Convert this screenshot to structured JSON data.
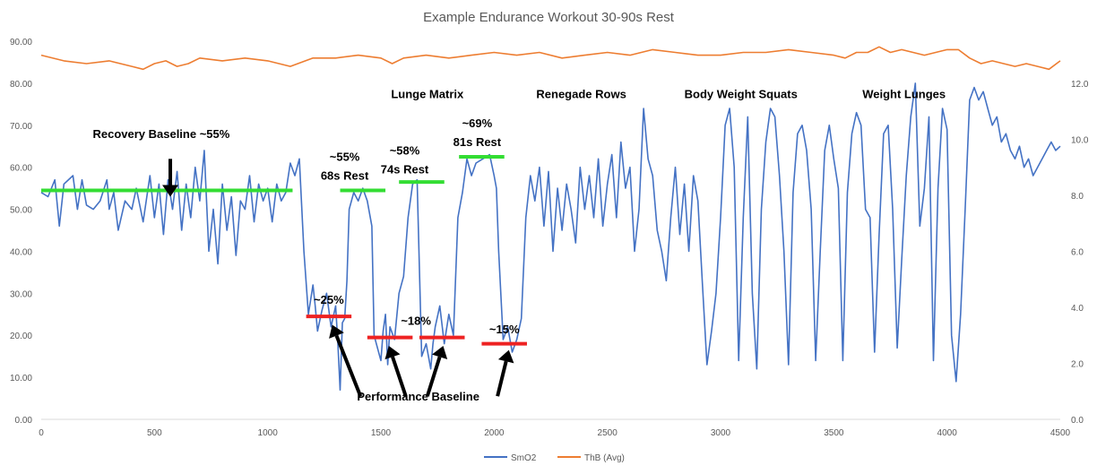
{
  "chart_data": {
    "type": "line",
    "title": "Example Endurance Workout 30-90s Rest",
    "xlabel": "",
    "ylabel": "",
    "x_ticks": [
      "0",
      "500",
      "1000",
      "1500",
      "2000",
      "2500",
      "3000",
      "3500",
      "4000",
      "4500"
    ],
    "y_left_ticks": [
      "0.00",
      "10.00",
      "20.00",
      "30.00",
      "40.00",
      "50.00",
      "60.00",
      "70.00",
      "80.00",
      "90.00"
    ],
    "y_right_ticks": [
      "0.0",
      "2.0",
      "4.0",
      "6.0",
      "8.0",
      "10.0",
      "12.0"
    ],
    "xlim": [
      0,
      4500
    ],
    "ylim_left": [
      0,
      90
    ],
    "ylim_right": [
      0,
      13.5
    ],
    "grid": false,
    "legend_position": "bottom",
    "series": [
      {
        "name": "SmO2",
        "axis": "left",
        "color": "#4472C4",
        "x": [
          0,
          30,
          60,
          80,
          100,
          140,
          160,
          180,
          200,
          230,
          260,
          290,
          300,
          320,
          340,
          370,
          400,
          420,
          450,
          480,
          500,
          520,
          540,
          560,
          580,
          600,
          620,
          640,
          660,
          680,
          700,
          720,
          740,
          760,
          780,
          800,
          820,
          840,
          860,
          880,
          900,
          920,
          940,
          960,
          980,
          1000,
          1020,
          1040,
          1060,
          1080,
          1100,
          1120,
          1140,
          1160,
          1180,
          1200,
          1210,
          1220,
          1240,
          1260,
          1280,
          1300,
          1310,
          1320,
          1330,
          1340,
          1350,
          1360,
          1380,
          1400,
          1420,
          1440,
          1460,
          1470,
          1480,
          1500,
          1510,
          1520,
          1530,
          1540,
          1560,
          1580,
          1600,
          1620,
          1640,
          1660,
          1680,
          1700,
          1720,
          1730,
          1740,
          1760,
          1780,
          1800,
          1820,
          1840,
          1860,
          1880,
          1900,
          1920,
          1950,
          1980,
          2000,
          2010,
          2020,
          2040,
          2060,
          2080,
          2100,
          2120,
          2140,
          2160,
          2180,
          2200,
          2220,
          2240,
          2260,
          2280,
          2300,
          2320,
          2340,
          2360,
          2380,
          2400,
          2420,
          2440,
          2460,
          2480,
          2500,
          2520,
          2540,
          2560,
          2580,
          2600,
          2620,
          2640,
          2660,
          2680,
          2700,
          2720,
          2740,
          2760,
          2780,
          2800,
          2820,
          2840,
          2860,
          2880,
          2900,
          2920,
          2940,
          2960,
          2980,
          3000,
          3020,
          3040,
          3060,
          3080,
          3100,
          3120,
          3140,
          3160,
          3180,
          3200,
          3220,
          3240,
          3260,
          3280,
          3300,
          3320,
          3340,
          3360,
          3380,
          3400,
          3420,
          3440,
          3460,
          3480,
          3500,
          3520,
          3540,
          3560,
          3580,
          3600,
          3620,
          3640,
          3660,
          3680,
          3700,
          3720,
          3740,
          3760,
          3780,
          3800,
          3820,
          3840,
          3860,
          3880,
          3900,
          3920,
          3940,
          3960,
          3980,
          4000,
          4020,
          4040,
          4060,
          4080,
          4100,
          4120,
          4140,
          4160,
          4180,
          4200,
          4220,
          4240,
          4260,
          4280,
          4300,
          4320,
          4340,
          4360,
          4380,
          4400,
          4420,
          4440,
          4460,
          4480,
          4500
        ],
        "values": [
          54,
          53,
          57,
          46,
          56,
          58,
          50,
          57,
          51,
          50,
          52,
          57,
          50,
          54,
          45,
          52,
          50,
          55,
          47,
          58,
          48,
          56,
          44,
          57,
          50,
          59,
          45,
          56,
          48,
          60,
          52,
          64,
          40,
          50,
          37,
          56,
          45,
          53,
          39,
          52,
          50,
          58,
          47,
          56,
          52,
          55,
          47,
          56,
          52,
          54,
          61,
          58,
          62,
          40,
          25,
          32,
          27,
          21,
          26,
          30,
          22,
          27,
          18,
          7,
          23,
          24,
          33,
          50,
          54,
          52,
          55,
          52,
          46,
          20,
          18,
          14,
          21,
          25,
          13,
          22,
          19,
          30,
          34,
          48,
          56,
          57,
          15,
          18,
          12,
          18,
          22,
          27,
          18,
          25,
          20,
          48,
          54,
          62,
          58,
          61,
          62,
          63,
          58,
          55,
          40,
          19,
          22,
          16,
          19,
          24,
          48,
          58,
          52,
          60,
          46,
          59,
          40,
          55,
          45,
          56,
          50,
          42,
          60,
          50,
          58,
          48,
          62,
          46,
          56,
          63,
          48,
          66,
          55,
          60,
          40,
          50,
          74,
          62,
          58,
          45,
          40,
          33,
          48,
          60,
          44,
          56,
          40,
          58,
          52,
          32,
          13,
          21,
          30,
          48,
          70,
          74,
          60,
          14,
          48,
          72,
          30,
          12,
          50,
          66,
          74,
          72,
          58,
          40,
          13,
          54,
          68,
          70,
          64,
          50,
          14,
          40,
          64,
          70,
          62,
          55,
          14,
          54,
          68,
          73,
          70,
          50,
          48,
          16,
          44,
          68,
          70,
          50,
          17,
          38,
          58,
          72,
          80,
          46,
          55,
          72,
          14,
          55,
          74,
          69,
          20,
          9,
          25,
          50,
          76,
          79,
          76,
          78,
          74,
          70,
          72,
          66,
          68,
          64,
          62,
          65,
          60,
          62,
          58,
          60,
          62,
          64,
          66,
          64,
          65
        ],
        "y_estimated": true
      },
      {
        "name": "ThB (Avg)",
        "axis": "right",
        "color": "#ED7D31",
        "x": [
          0,
          100,
          200,
          300,
          400,
          450,
          500,
          550,
          600,
          650,
          700,
          800,
          900,
          1000,
          1100,
          1200,
          1300,
          1400,
          1500,
          1550,
          1600,
          1700,
          1800,
          1900,
          2000,
          2100,
          2200,
          2300,
          2400,
          2500,
          2600,
          2700,
          2800,
          2900,
          3000,
          3100,
          3200,
          3300,
          3400,
          3500,
          3550,
          3600,
          3650,
          3700,
          3750,
          3800,
          3850,
          3900,
          4000,
          4050,
          4100,
          4150,
          4200,
          4250,
          4300,
          4350,
          4400,
          4450,
          4500
        ],
        "values": [
          13.0,
          12.8,
          12.7,
          12.8,
          12.6,
          12.5,
          12.7,
          12.8,
          12.6,
          12.7,
          12.9,
          12.8,
          12.9,
          12.8,
          12.6,
          12.9,
          12.9,
          13.0,
          12.9,
          12.7,
          12.9,
          13.0,
          12.9,
          13.0,
          13.1,
          13.0,
          13.1,
          12.9,
          13.0,
          13.1,
          13.0,
          13.2,
          13.1,
          13.0,
          13.0,
          13.1,
          13.1,
          13.2,
          13.1,
          13.0,
          12.9,
          13.1,
          13.1,
          13.3,
          13.1,
          13.2,
          13.1,
          13.0,
          13.2,
          13.2,
          12.9,
          12.7,
          12.8,
          12.7,
          12.6,
          12.7,
          12.6,
          12.5,
          12.8
        ],
        "y_estimated": true
      }
    ],
    "baselines": [
      {
        "y": 54.5,
        "x1": 0,
        "x2": 1110,
        "color": "#33DD33"
      },
      {
        "y": 54.5,
        "x1": 1320,
        "x2": 1520,
        "color": "#33DD33"
      },
      {
        "y": 56.5,
        "x1": 1580,
        "x2": 1780,
        "color": "#33DD33"
      },
      {
        "y": 62.5,
        "x1": 1845,
        "x2": 2045,
        "color": "#33DD33"
      },
      {
        "y": 24.5,
        "x1": 1170,
        "x2": 1370,
        "color": "#EE2222"
      },
      {
        "y": 19.5,
        "x1": 1440,
        "x2": 1640,
        "color": "#EE2222"
      },
      {
        "y": 19.5,
        "x1": 1670,
        "x2": 1870,
        "color": "#EE2222"
      },
      {
        "y": 18.0,
        "x1": 1945,
        "x2": 2145,
        "color": "#EE2222"
      }
    ],
    "annotations": [
      {
        "text": "Recovery Baseline ~55%",
        "x": 530,
        "y": 67
      },
      {
        "text": "~55%",
        "x": 1340,
        "y": 61.5
      },
      {
        "text": "68s Rest",
        "x": 1340,
        "y": 57
      },
      {
        "text": "~58%",
        "x": 1605,
        "y": 63
      },
      {
        "text": "74s Rest",
        "x": 1605,
        "y": 58.5
      },
      {
        "text": "~69%",
        "x": 1925,
        "y": 69.5
      },
      {
        "text": "81s Rest",
        "x": 1925,
        "y": 65
      },
      {
        "text": "Lunge Matrix",
        "x": 1705,
        "y": 76.5
      },
      {
        "text": "Renegade Rows",
        "x": 2385,
        "y": 76.5
      },
      {
        "text": "Body Weight Squats",
        "x": 3090,
        "y": 76.5
      },
      {
        "text": "Weight Lunges",
        "x": 3810,
        "y": 76.5
      },
      {
        "text": "~25%",
        "x": 1270,
        "y": 27.5
      },
      {
        "text": "~18%",
        "x": 1655,
        "y": 22.5
      },
      {
        "text": "~15%",
        "x": 2045,
        "y": 20.5
      },
      {
        "text": "Performance Baseline",
        "x": 1665,
        "y": 4.5
      }
    ],
    "arrows": [
      {
        "from": [
          570,
          62
        ],
        "to": [
          570,
          53
        ]
      },
      {
        "from": [
          1410,
          5.5
        ],
        "to": [
          1285,
          22.5
        ]
      },
      {
        "from": [
          1610,
          5.5
        ],
        "to": [
          1535,
          17.5
        ]
      },
      {
        "from": [
          1705,
          5.5
        ],
        "to": [
          1775,
          17.5
        ]
      },
      {
        "from": [
          2015,
          5.5
        ],
        "to": [
          2065,
          16.5
        ]
      }
    ]
  }
}
